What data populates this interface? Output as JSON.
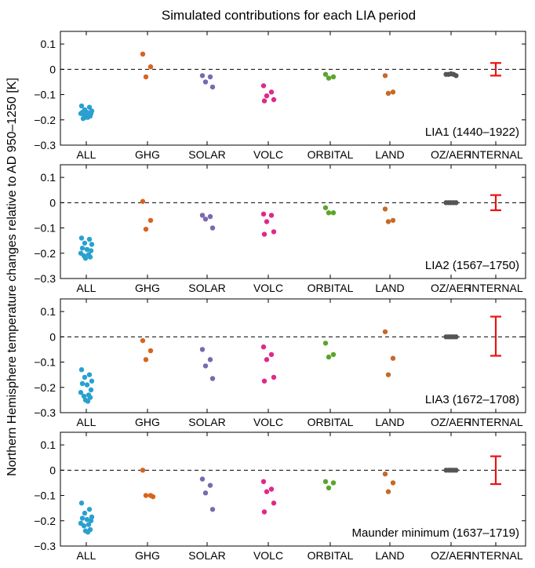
{
  "figure": {
    "title": "Simulated contributions for each LIA period",
    "ylabel": "Northern Hemisphere temperature changes relative to AD 950–1250  [K]"
  },
  "colors": {
    "ALL": "#2aa0d0",
    "GHG": "#d9631d",
    "SOLAR": "#7b68b0",
    "VOLC": "#e0288a",
    "ORBITAL": "#5aa52a",
    "LAND": "#c56a26",
    "OZ/AER": "#555555",
    "INTERNAL": "#ee1111"
  },
  "chart_data": [
    {
      "type": "scatter",
      "panel_label": "LIA1 (1440–1922)",
      "categories": [
        "ALL",
        "GHG",
        "SOLAR",
        "VOLC",
        "ORBITAL",
        "LAND",
        "OZ/AER",
        "INTERNAL"
      ],
      "ylim": [
        -0.3,
        0.15
      ],
      "yticks": [
        "0.1",
        "0",
        "−0.1",
        "−0.2",
        "−0.3"
      ],
      "zero_line": "dashed",
      "points": {
        "ALL": [
          -0.145,
          -0.15,
          -0.16,
          -0.165,
          -0.17,
          -0.17,
          -0.175,
          -0.175,
          -0.18,
          -0.18,
          -0.185,
          -0.19,
          -0.19,
          -0.195
        ],
        "GHG": [
          0.06,
          0.01,
          -0.03
        ],
        "SOLAR": [
          -0.025,
          -0.03,
          -0.05,
          -0.07
        ],
        "VOLC": [
          -0.065,
          -0.09,
          -0.105,
          -0.12,
          -0.125
        ],
        "ORBITAL": [
          -0.02,
          -0.03,
          -0.035
        ],
        "LAND": [
          -0.025,
          -0.09,
          -0.095
        ],
        "OZ/AER": [
          -0.02,
          -0.02,
          -0.018,
          -0.02,
          -0.025
        ]
      },
      "internal_range": [
        -0.025,
        0.025
      ]
    },
    {
      "type": "scatter",
      "panel_label": "LIA2 (1567–1750)",
      "categories": [
        "ALL",
        "GHG",
        "SOLAR",
        "VOLC",
        "ORBITAL",
        "LAND",
        "OZ/AER",
        "INTERNAL"
      ],
      "ylim": [
        -0.3,
        0.15
      ],
      "yticks": [
        "0.1",
        "0",
        "−0.1",
        "−0.2",
        "−0.3"
      ],
      "zero_line": "dashed",
      "points": {
        "ALL": [
          -0.14,
          -0.145,
          -0.16,
          -0.165,
          -0.18,
          -0.185,
          -0.19,
          -0.2,
          -0.205,
          -0.21,
          -0.215,
          -0.22
        ],
        "GHG": [
          0.005,
          -0.07,
          -0.105
        ],
        "SOLAR": [
          -0.05,
          -0.055,
          -0.065,
          -0.1
        ],
        "VOLC": [
          -0.045,
          -0.05,
          -0.075,
          -0.115,
          -0.125
        ],
        "ORBITAL": [
          -0.02,
          -0.04,
          -0.04
        ],
        "LAND": [
          -0.025,
          -0.07,
          -0.075
        ],
        "OZ/AER": [
          0.0,
          0.0,
          0.0,
          0.0,
          0.0
        ]
      },
      "internal_range": [
        -0.03,
        0.03
      ]
    },
    {
      "type": "scatter",
      "panel_label": "LIA3 (1672–1708)",
      "categories": [
        "ALL",
        "GHG",
        "SOLAR",
        "VOLC",
        "ORBITAL",
        "LAND",
        "OZ/AER",
        "INTERNAL"
      ],
      "ylim": [
        -0.3,
        0.15
      ],
      "yticks": [
        "0.1",
        "0",
        "−0.1",
        "−0.2",
        "−0.3"
      ],
      "zero_line": "dashed",
      "points": {
        "ALL": [
          -0.13,
          -0.15,
          -0.16,
          -0.175,
          -0.185,
          -0.19,
          -0.21,
          -0.22,
          -0.23,
          -0.235,
          -0.24,
          -0.25,
          -0.255
        ],
        "GHG": [
          -0.015,
          -0.055,
          -0.09
        ],
        "SOLAR": [
          -0.05,
          -0.09,
          -0.115,
          -0.165
        ],
        "VOLC": [
          -0.04,
          -0.07,
          -0.09,
          -0.16,
          -0.175
        ],
        "ORBITAL": [
          -0.025,
          -0.07,
          -0.08
        ],
        "LAND": [
          0.02,
          -0.085,
          -0.15
        ],
        "OZ/AER": [
          0.0,
          0.0,
          0.0,
          0.0,
          0.0
        ]
      },
      "internal_range": [
        -0.075,
        0.08
      ]
    },
    {
      "type": "scatter",
      "panel_label": "Maunder minimum (1637–1719)",
      "categories": [
        "ALL",
        "GHG",
        "SOLAR",
        "VOLC",
        "ORBITAL",
        "LAND",
        "OZ/AER",
        "INTERNAL"
      ],
      "ylim": [
        -0.3,
        0.15
      ],
      "yticks": [
        "0.1",
        "0",
        "−0.1",
        "−0.2",
        "−0.3"
      ],
      "zero_line": "dashed",
      "points": {
        "ALL": [
          -0.13,
          -0.155,
          -0.17,
          -0.185,
          -0.19,
          -0.195,
          -0.2,
          -0.21,
          -0.215,
          -0.22,
          -0.235,
          -0.24,
          -0.245
        ],
        "GHG": [
          0.0,
          -0.1,
          -0.1,
          -0.105
        ],
        "SOLAR": [
          -0.035,
          -0.06,
          -0.09,
          -0.155
        ],
        "VOLC": [
          -0.045,
          -0.075,
          -0.085,
          -0.13,
          -0.165
        ],
        "ORBITAL": [
          -0.045,
          -0.05,
          -0.07
        ],
        "LAND": [
          -0.015,
          -0.05,
          -0.085
        ],
        "OZ/AER": [
          0.0,
          0.0,
          0.0,
          0.0,
          0.0
        ]
      },
      "internal_range": [
        -0.055,
        0.055
      ]
    }
  ]
}
